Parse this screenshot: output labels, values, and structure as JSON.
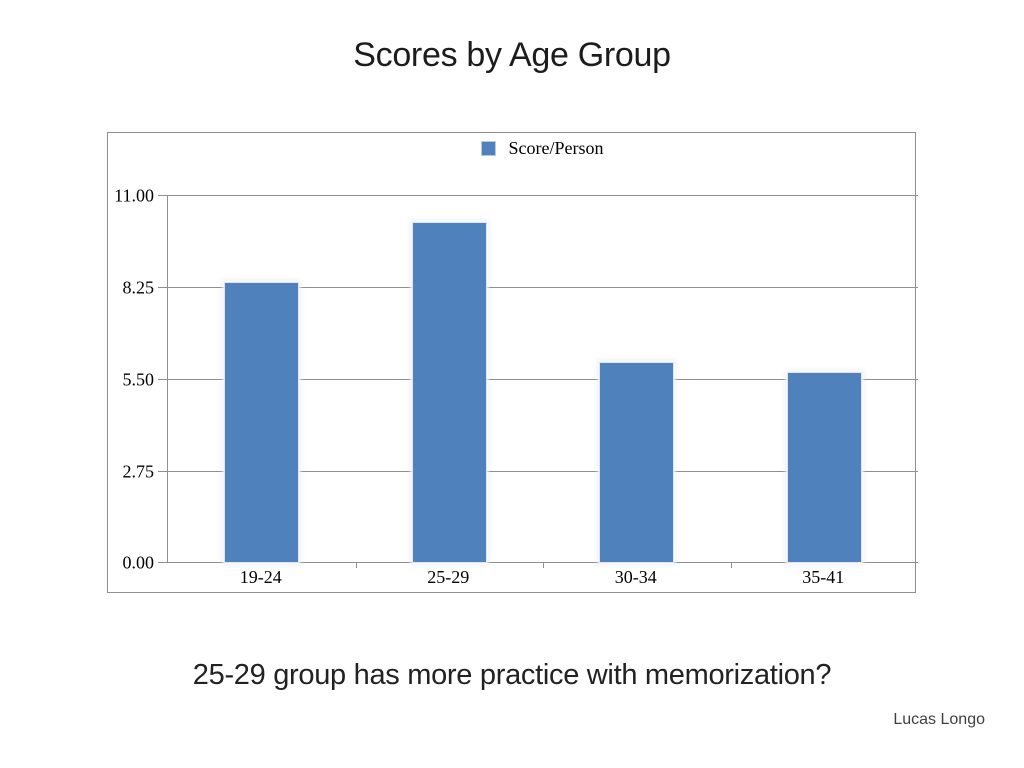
{
  "slide": {
    "title": "Scores by Age Group",
    "caption": "25-29 group has more practice with memorization?",
    "author": "Lucas Longo"
  },
  "chart_data": {
    "type": "bar",
    "title": "Scores by Age Group",
    "categories": [
      "19-24",
      "25-29",
      "30-34",
      "35-41"
    ],
    "series": [
      {
        "name": "Score/Person",
        "values": [
          8.4,
          10.2,
          6.0,
          5.7
        ]
      }
    ],
    "xlabel": "",
    "ylabel": "",
    "ylim": [
      0,
      11
    ],
    "ytick_labels": [
      "0.00",
      "2.75",
      "5.50",
      "8.25",
      "11.00"
    ],
    "grid": true,
    "legend": {
      "label": "Score/Person",
      "position": "top-center"
    },
    "colors": {
      "bar": "#4f82bc",
      "bar_edge": "#dfe5f0",
      "grid": "#8f8f8f",
      "frame": "#8f8f8f"
    }
  }
}
